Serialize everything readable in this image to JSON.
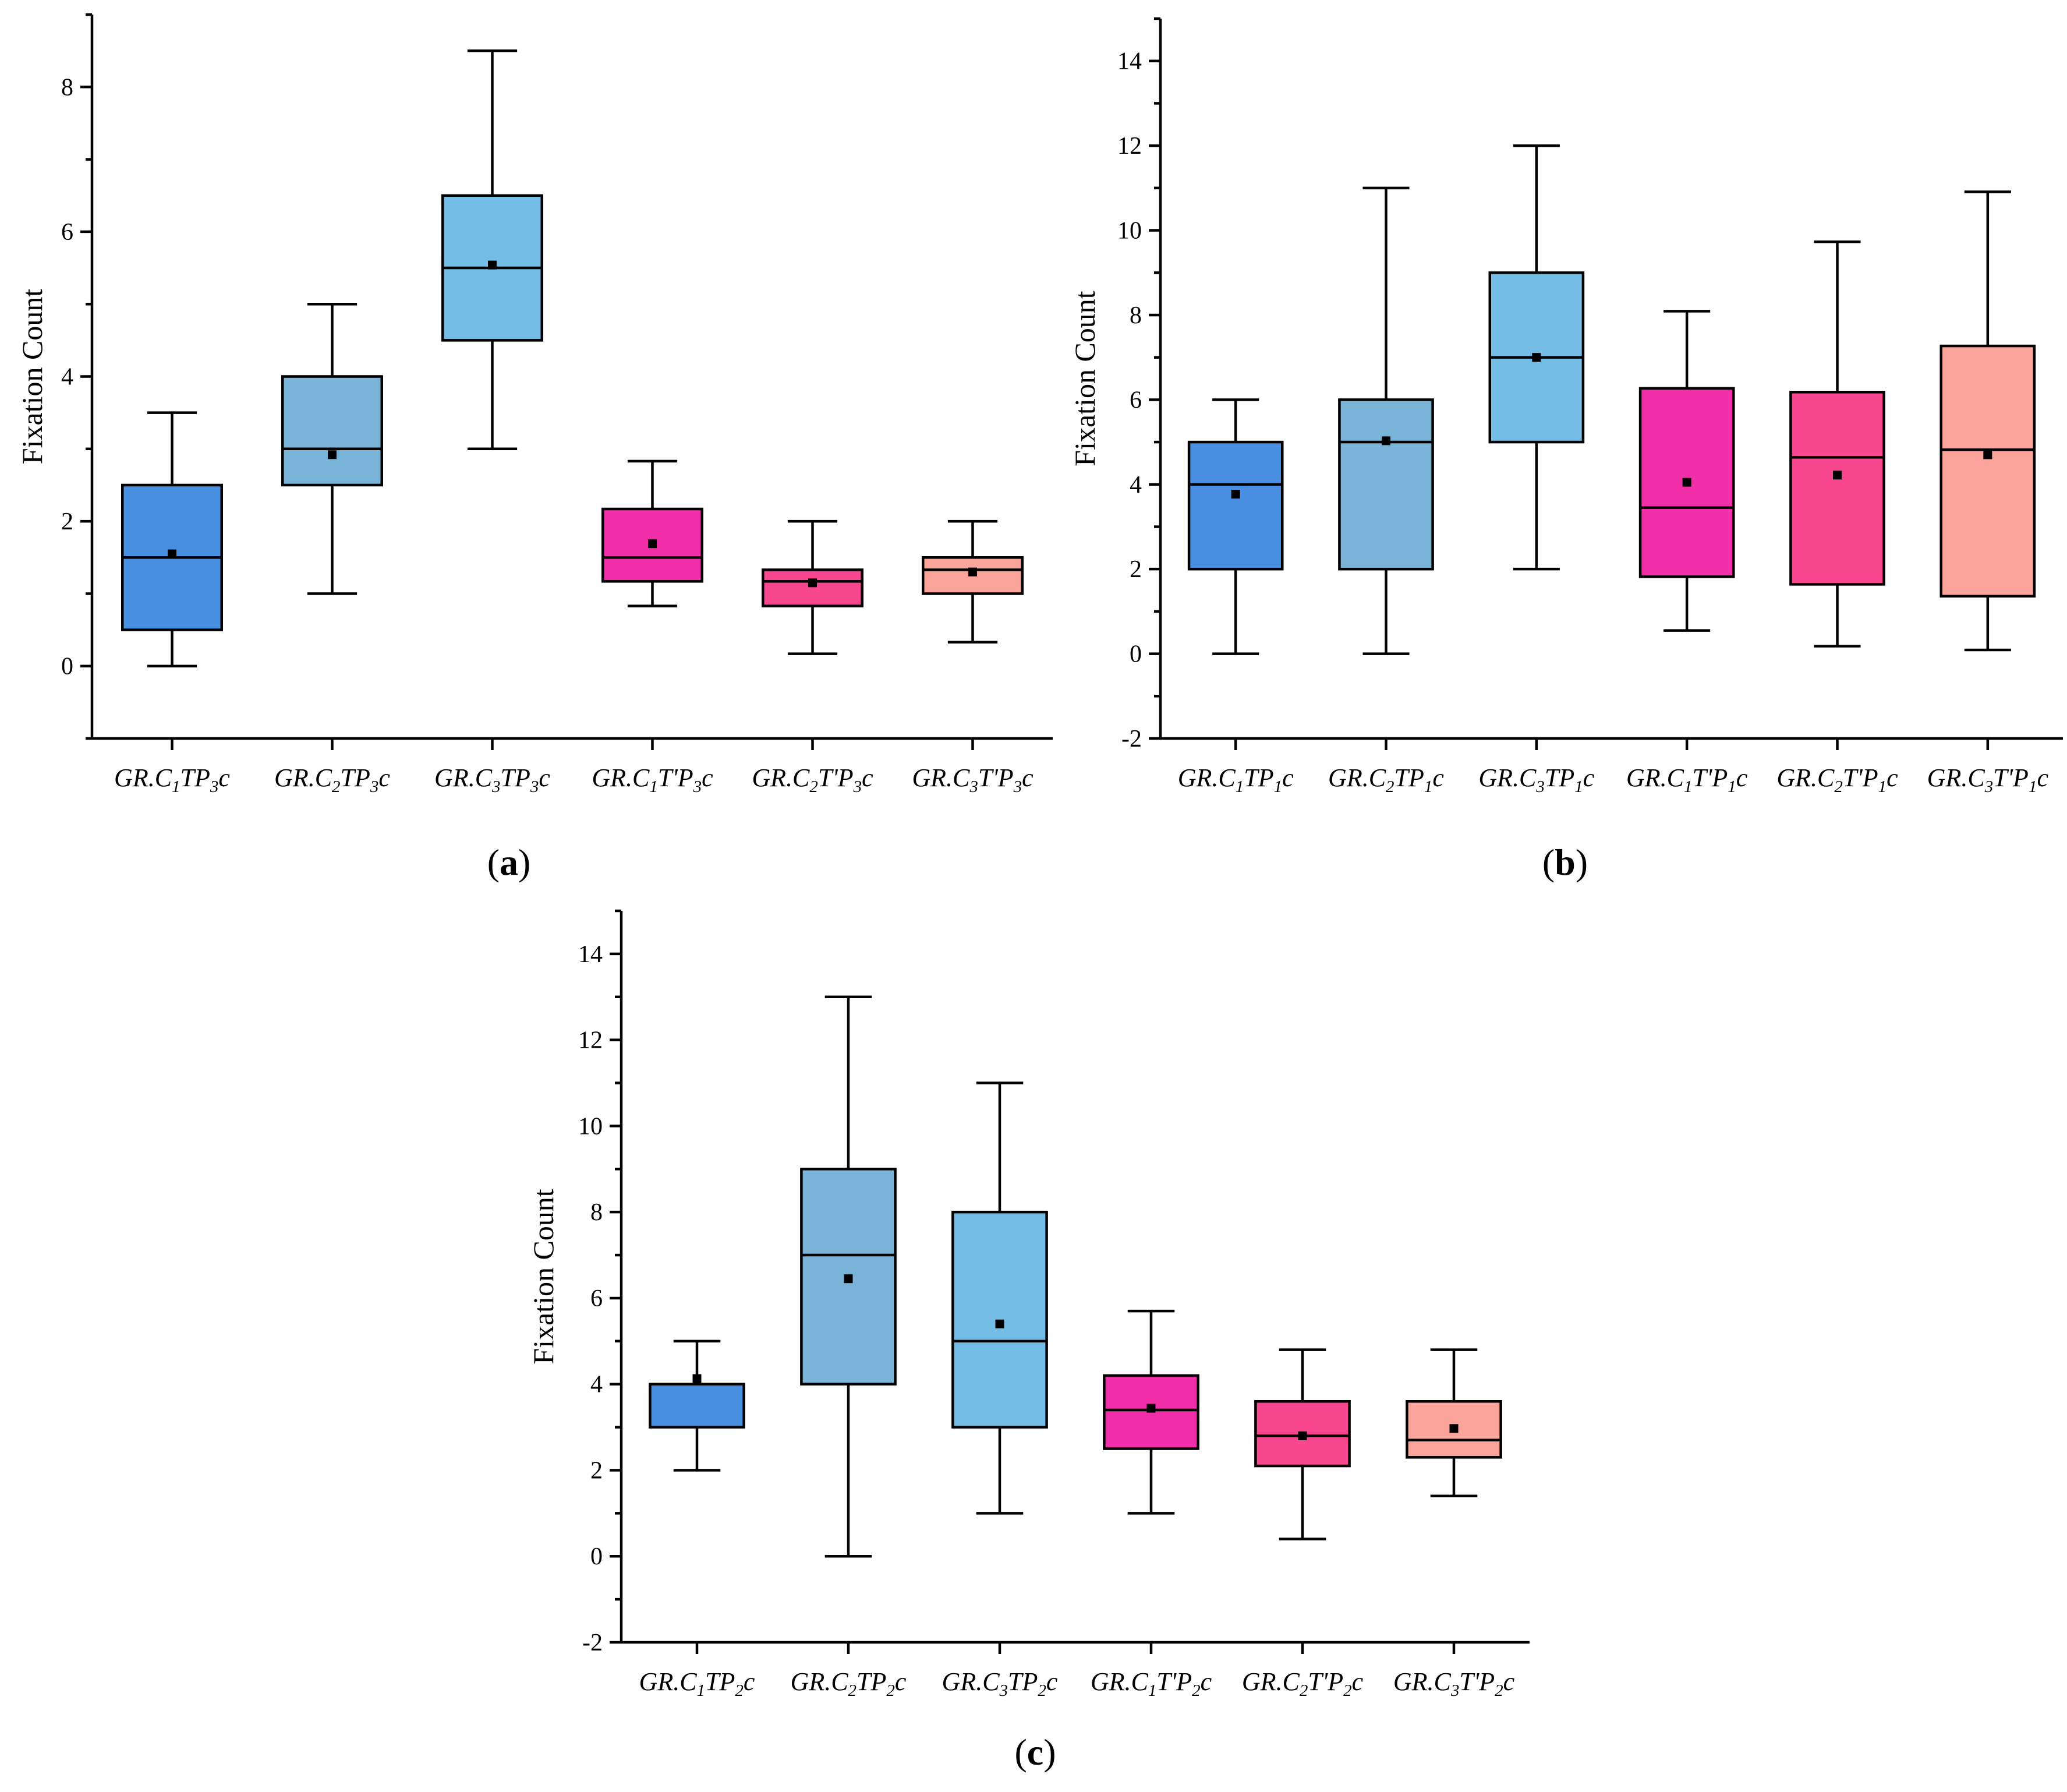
{
  "chart_data": [
    {
      "id": "a",
      "type": "box",
      "panel_label": "a",
      "ylabel": "Fixation Count",
      "ylim": [
        -1,
        9
      ],
      "yticks": [
        0,
        2,
        4,
        6,
        8
      ],
      "yticks_minor": [
        -1,
        1,
        3,
        5,
        7,
        9
      ],
      "categories": [
        {
          "parts": [
            [
              "GR.C",
              "n"
            ],
            [
              "1",
              "sub"
            ],
            [
              "TP",
              "n"
            ],
            [
              "3",
              "sub"
            ],
            [
              "c",
              "n"
            ]
          ],
          "color": "#4a90e2",
          "whisker_low": 0,
          "q1": 0.5,
          "median": 1.5,
          "q3": 2.5,
          "whisker_high": 3.5,
          "mean": 1.55
        },
        {
          "parts": [
            [
              "GR.C",
              "n"
            ],
            [
              "2",
              "sub"
            ],
            [
              "TP",
              "n"
            ],
            [
              "3",
              "sub"
            ],
            [
              "c",
              "n"
            ]
          ],
          "color": "#79b4d8",
          "whisker_low": 1,
          "q1": 2.5,
          "median": 3,
          "q3": 4,
          "whisker_high": 5,
          "mean": 2.92
        },
        {
          "parts": [
            [
              "GR.C",
              "n"
            ],
            [
              "3",
              "sub"
            ],
            [
              "TP",
              "n"
            ],
            [
              "3",
              "sub"
            ],
            [
              "c",
              "n"
            ]
          ],
          "color": "#74bde6",
          "whisker_low": 3,
          "q1": 4.5,
          "median": 5.5,
          "q3": 6.5,
          "whisker_high": 8.5,
          "mean": 5.54
        },
        {
          "parts": [
            [
              "GR.C",
              "n"
            ],
            [
              "1",
              "sub"
            ],
            [
              "T'P",
              "n"
            ],
            [
              "3",
              "sub"
            ],
            [
              "c",
              "n"
            ]
          ],
          "color": "#f12fa8",
          "whisker_low": 0.83,
          "q1": 1.17,
          "median": 1.5,
          "q3": 2.17,
          "whisker_high": 2.83,
          "mean": 1.69
        },
        {
          "parts": [
            [
              "GR.C",
              "n"
            ],
            [
              "2",
              "sub"
            ],
            [
              "T'P",
              "n"
            ],
            [
              "3",
              "sub"
            ],
            [
              "c",
              "n"
            ]
          ],
          "color": "#f9478f",
          "whisker_low": 0.17,
          "q1": 0.83,
          "median": 1.17,
          "q3": 1.33,
          "whisker_high": 2,
          "mean": 1.15
        },
        {
          "parts": [
            [
              "GR.C",
              "n"
            ],
            [
              "3",
              "sub"
            ],
            [
              "T'P",
              "n"
            ],
            [
              "3",
              "sub"
            ],
            [
              "c",
              "n"
            ]
          ],
          "color": "#fba49c",
          "whisker_low": 0.33,
          "q1": 1,
          "median": 1.33,
          "q3": 1.5,
          "whisker_high": 2,
          "mean": 1.3
        }
      ]
    },
    {
      "id": "b",
      "type": "box",
      "panel_label": "b",
      "ylabel": "Fixation Count",
      "ylim": [
        -2,
        15
      ],
      "yticks": [
        -2,
        0,
        2,
        4,
        6,
        8,
        10,
        12,
        14
      ],
      "yticks_minor": [
        -1,
        1,
        3,
        5,
        7,
        9,
        11,
        13,
        15
      ],
      "categories": [
        {
          "parts": [
            [
              "GR.C",
              "n"
            ],
            [
              "1",
              "sub"
            ],
            [
              "TP",
              "n"
            ],
            [
              "1",
              "sub"
            ],
            [
              "c",
              "n"
            ]
          ],
          "color": "#4a90e2",
          "whisker_low": 0,
          "q1": 2,
          "median": 4,
          "q3": 5,
          "whisker_high": 6,
          "mean": 3.77
        },
        {
          "parts": [
            [
              "GR.C",
              "n"
            ],
            [
              "2",
              "sub"
            ],
            [
              "TP",
              "n"
            ],
            [
              "1",
              "sub"
            ],
            [
              "c",
              "n"
            ]
          ],
          "color": "#79b4d8",
          "whisker_low": 0,
          "q1": 2,
          "median": 5,
          "q3": 6,
          "whisker_high": 11,
          "mean": 5.03
        },
        {
          "parts": [
            [
              "GR.C",
              "n"
            ],
            [
              "3",
              "sub"
            ],
            [
              "TP",
              "n"
            ],
            [
              "1",
              "sub"
            ],
            [
              "c",
              "n"
            ]
          ],
          "color": "#74bde6",
          "whisker_low": 2,
          "q1": 5,
          "median": 7,
          "q3": 9,
          "whisker_high": 12,
          "mean": 7
        },
        {
          "parts": [
            [
              "GR.C",
              "n"
            ],
            [
              "1",
              "sub"
            ],
            [
              "T'P",
              "n"
            ],
            [
              "1",
              "sub"
            ],
            [
              "c",
              "n"
            ]
          ],
          "color": "#f12fa8",
          "whisker_low": 0.55,
          "q1": 1.82,
          "median": 3.45,
          "q3": 6.27,
          "whisker_high": 8.09,
          "mean": 4.05
        },
        {
          "parts": [
            [
              "GR.C",
              "n"
            ],
            [
              "2",
              "sub"
            ],
            [
              "T'P",
              "n"
            ],
            [
              "1",
              "sub"
            ],
            [
              "c",
              "n"
            ]
          ],
          "color": "#f9478f",
          "whisker_low": 0.18,
          "q1": 1.64,
          "median": 4.64,
          "q3": 6.18,
          "whisker_high": 9.73,
          "mean": 4.22
        },
        {
          "parts": [
            [
              "GR.C",
              "n"
            ],
            [
              "3",
              "sub"
            ],
            [
              "T'P",
              "n"
            ],
            [
              "1",
              "sub"
            ],
            [
              "c",
              "n"
            ]
          ],
          "color": "#fba49c",
          "whisker_low": 0.09,
          "q1": 1.36,
          "median": 4.82,
          "q3": 7.27,
          "whisker_high": 10.91,
          "mean": 4.7
        }
      ]
    },
    {
      "id": "c",
      "type": "box",
      "panel_label": "c",
      "ylabel": "Fixation Count",
      "ylim": [
        -2,
        15
      ],
      "yticks": [
        -2,
        0,
        2,
        4,
        6,
        8,
        10,
        12,
        14
      ],
      "yticks_minor": [
        -1,
        1,
        3,
        5,
        7,
        9,
        11,
        13,
        15
      ],
      "categories": [
        {
          "parts": [
            [
              "GR.C",
              "n"
            ],
            [
              "1",
              "sub"
            ],
            [
              "TP",
              "n"
            ],
            [
              "2",
              "sub"
            ],
            [
              "c",
              "n"
            ]
          ],
          "color": "#4a90e2",
          "whisker_low": 2,
          "q1": 3,
          "median": 4,
          "q3": 4,
          "whisker_high": 5,
          "mean": 4.13
        },
        {
          "parts": [
            [
              "GR.C",
              "n"
            ],
            [
              "2",
              "sub"
            ],
            [
              "TP",
              "n"
            ],
            [
              "2",
              "sub"
            ],
            [
              "c",
              "n"
            ]
          ],
          "color": "#79b4d8",
          "whisker_low": 0,
          "q1": 4,
          "median": 7,
          "q3": 9,
          "whisker_high": 13,
          "mean": 6.45
        },
        {
          "parts": [
            [
              "GR.C",
              "n"
            ],
            [
              "3",
              "sub"
            ],
            [
              "TP",
              "n"
            ],
            [
              "2",
              "sub"
            ],
            [
              "c",
              "n"
            ]
          ],
          "color": "#74bde6",
          "whisker_low": 1,
          "q1": 3,
          "median": 5,
          "q3": 8,
          "whisker_high": 11,
          "mean": 5.4
        },
        {
          "parts": [
            [
              "GR.C",
              "n"
            ],
            [
              "1",
              "sub"
            ],
            [
              "T'P",
              "n"
            ],
            [
              "2",
              "sub"
            ],
            [
              "c",
              "n"
            ]
          ],
          "color": "#f12fa8",
          "whisker_low": 1,
          "q1": 2.5,
          "median": 3.4,
          "q3": 4.2,
          "whisker_high": 5.7,
          "mean": 3.44
        },
        {
          "parts": [
            [
              "GR.C",
              "n"
            ],
            [
              "2",
              "sub"
            ],
            [
              "T'P",
              "n"
            ],
            [
              "2",
              "sub"
            ],
            [
              "c",
              "n"
            ]
          ],
          "color": "#f9478f",
          "whisker_low": 0.4,
          "q1": 2.1,
          "median": 2.8,
          "q3": 3.6,
          "whisker_high": 4.8,
          "mean": 2.8
        },
        {
          "parts": [
            [
              "GR.C",
              "n"
            ],
            [
              "3",
              "sub"
            ],
            [
              "T'P",
              "n"
            ],
            [
              "2",
              "sub"
            ],
            [
              "c",
              "n"
            ]
          ],
          "color": "#fba49c",
          "whisker_low": 1.4,
          "q1": 2.3,
          "median": 2.7,
          "q3": 3.6,
          "whisker_high": 4.8,
          "mean": 2.97
        }
      ]
    }
  ]
}
